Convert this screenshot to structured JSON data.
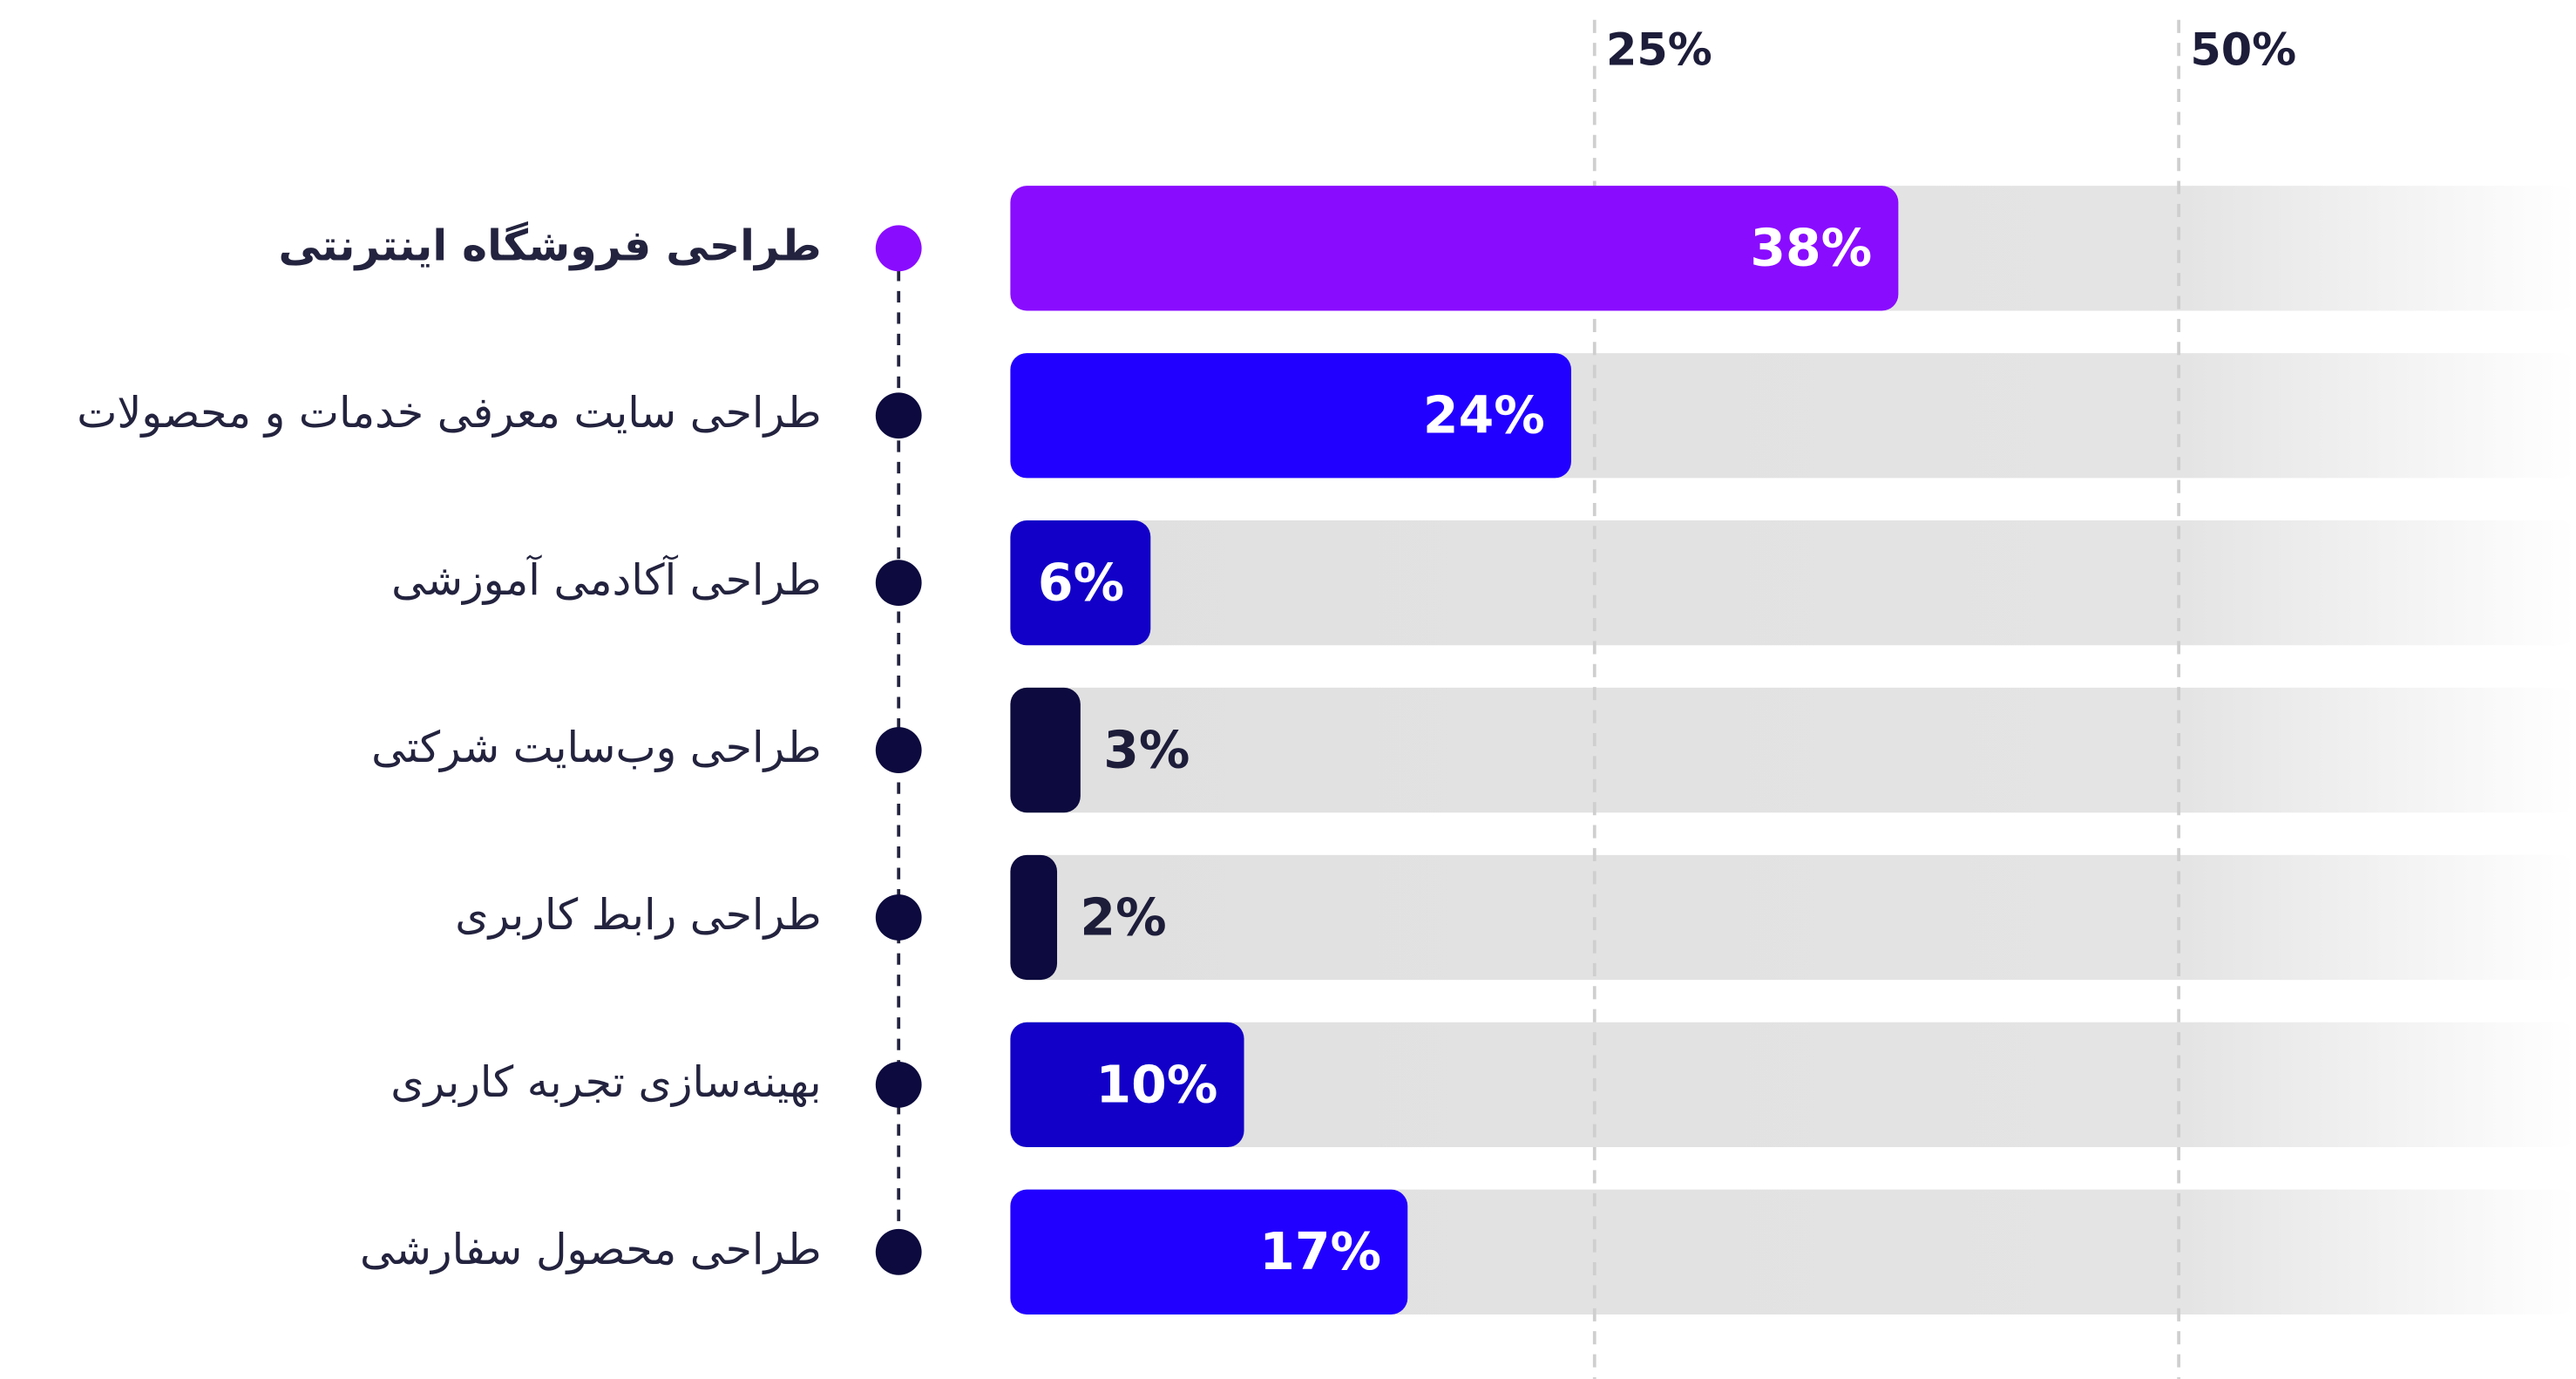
{
  "chart_data": {
    "type": "bar",
    "orientation": "horizontal",
    "categories": [
      "طراحی فروشگاه اینترنتی",
      "طراحی سایت معرفی خدمات و محصولات",
      "طراحی آکادمی آموزشی",
      "طراحی وب‌سایت شرکتی",
      "طراحی رابط کاربری",
      "بهینه‌سازی تجربه کاربری",
      "طراحی محصول سفارشی"
    ],
    "values": [
      38,
      24,
      6,
      3,
      2,
      10,
      17
    ],
    "value_labels": [
      "38%",
      "24%",
      "6%",
      "3%",
      "2%",
      "10%",
      "17%"
    ],
    "colors": [
      "#8a0cff",
      "#2200ff",
      "#1200c8",
      "#0c0a3e",
      "#0c0a3e",
      "#1200c8",
      "#2200ff"
    ],
    "xlim": [
      0,
      67
    ],
    "xticks": [
      {
        "value": 25,
        "label": "25%"
      },
      {
        "value": 50,
        "label": "50%"
      }
    ],
    "grid": true
  }
}
